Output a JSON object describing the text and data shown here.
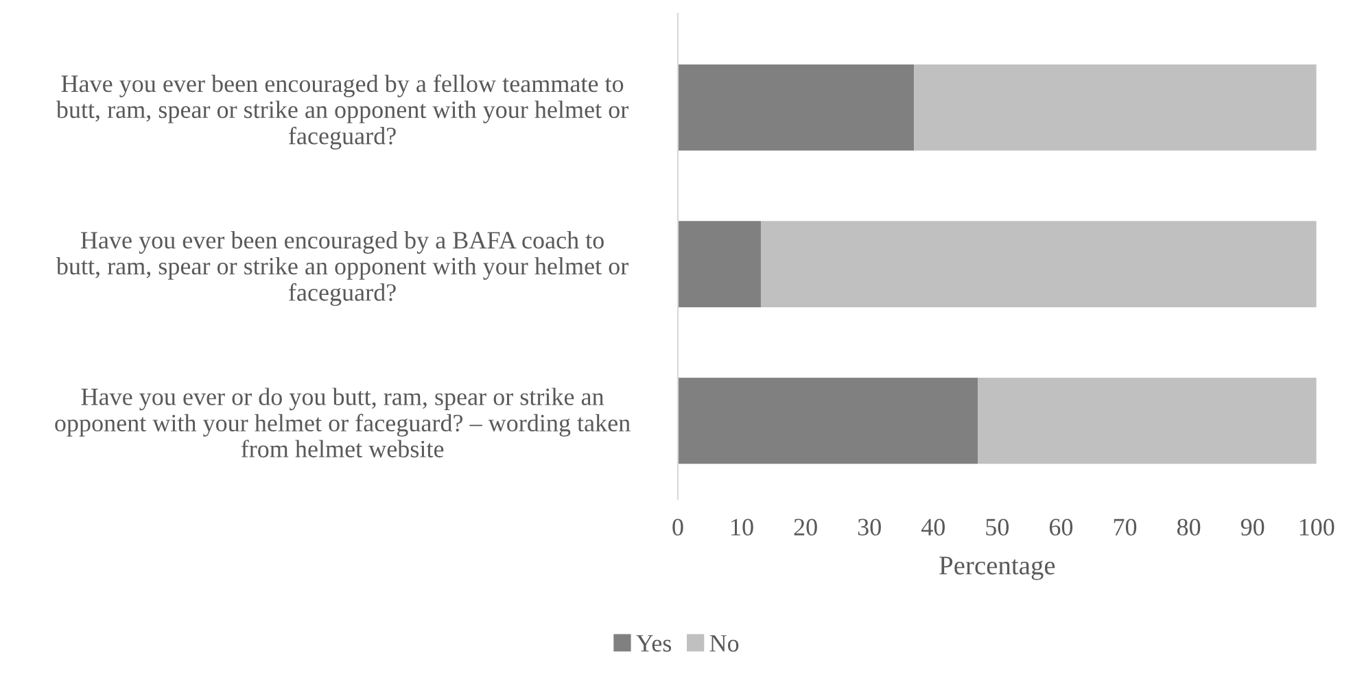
{
  "chart_data": {
    "type": "bar",
    "orientation": "horizontal",
    "stacked": true,
    "categories": [
      "Have you ever been encouraged by a fellow teammate to\nbutt, ram, spear or strike an opponent with your helmet or\nfaceguard?",
      "Have you ever been encouraged by a BAFA coach to\nbutt, ram, spear or strike an opponent with your helmet or\nfaceguard?",
      "Have you ever or do you butt, ram, spear or strike an\nopponent with your helmet or faceguard? – wording taken\nfrom helmet website"
    ],
    "series": [
      {
        "name": "Yes",
        "color": "#808080",
        "values": [
          37,
          13,
          47
        ]
      },
      {
        "name": "No",
        "color": "#c0c0c0",
        "values": [
          63,
          87,
          53
        ]
      }
    ],
    "xlabel": "Percentage",
    "xlim": [
      0,
      100
    ],
    "xticks": [
      0,
      10,
      20,
      30,
      40,
      50,
      60,
      70,
      80,
      90,
      100
    ],
    "grid": false,
    "legend": "bottom"
  }
}
